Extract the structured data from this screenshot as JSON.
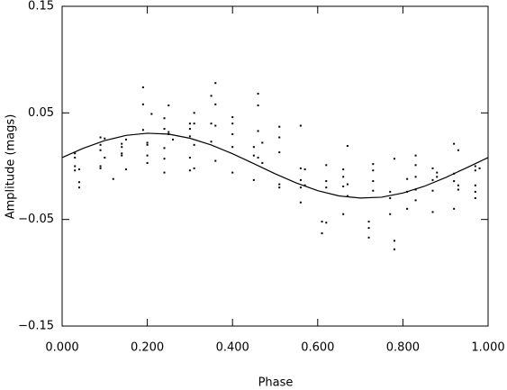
{
  "chart_data": {
    "type": "scatter",
    "xlabel": "Phase",
    "ylabel": "Amplitude (mags)",
    "xlim": [
      0,
      1
    ],
    "ylim": [
      -0.15,
      0.15
    ],
    "xticks": [
      {
        "value": 0,
        "label": "0.000"
      },
      {
        "value": 0.2,
        "label": "0.200"
      },
      {
        "value": 0.4,
        "label": "0.400"
      },
      {
        "value": 0.6,
        "label": "0.600"
      },
      {
        "value": 0.8,
        "label": "0.800"
      },
      {
        "value": 1,
        "label": "1.000"
      }
    ],
    "yticks": [
      {
        "value": -0.15,
        "label": "−0.15"
      },
      {
        "value": -0.05,
        "label": "−0.05"
      },
      0.05,
      0.15
    ],
    "series": [
      {
        "style": "points",
        "color": "#000000",
        "x": [
          0.03,
          0.03,
          0.03,
          0.03,
          0.04,
          0.04,
          0.04,
          0.09,
          0.09,
          0.09,
          0.09,
          0.09,
          0.1,
          0.1,
          0.12,
          0.14,
          0.14,
          0.14,
          0.14,
          0.15,
          0.15,
          0.19,
          0.19,
          0.19,
          0.2,
          0.2,
          0.2,
          0.2,
          0.21,
          0.24,
          0.24,
          0.24,
          0.24,
          0.24,
          0.25,
          0.25,
          0.25,
          0.26,
          0.3,
          0.3,
          0.3,
          0.3,
          0.3,
          0.31,
          0.31,
          0.31,
          0.31,
          0.35,
          0.35,
          0.35,
          0.36,
          0.36,
          0.36,
          0.36,
          0.4,
          0.4,
          0.4,
          0.4,
          0.4,
          0.45,
          0.45,
          0.45,
          0.46,
          0.46,
          0.46,
          0.46,
          0.47,
          0.47,
          0.51,
          0.51,
          0.51,
          0.51,
          0.51,
          0.56,
          0.56,
          0.56,
          0.56,
          0.56,
          0.57,
          0.57,
          0.61,
          0.61,
          0.62,
          0.62,
          0.62,
          0.62,
          0.66,
          0.66,
          0.66,
          0.66,
          0.67,
          0.67,
          0.67,
          0.72,
          0.72,
          0.72,
          0.73,
          0.73,
          0.73,
          0.73,
          0.77,
          0.77,
          0.77,
          0.78,
          0.78,
          0.78,
          0.81,
          0.81,
          0.81,
          0.83,
          0.83,
          0.83,
          0.83,
          0.83,
          0.87,
          0.87,
          0.87,
          0.87,
          0.88,
          0.88,
          0.92,
          0.92,
          0.92,
          0.92,
          0.93,
          0.93,
          0.93,
          0.97,
          0.97,
          0.97,
          0.97,
          0.97,
          0.98
        ],
        "values": [
          0.008,
          0.0,
          -0.004,
          0.012,
          -0.015,
          -0.02,
          -0.003,
          0.027,
          0.02,
          0.015,
          0.0,
          -0.002,
          0.026,
          0.008,
          -0.012,
          0.021,
          0.018,
          0.012,
          0.01,
          0.025,
          -0.003,
          0.074,
          0.058,
          0.034,
          0.022,
          0.02,
          0.01,
          0.003,
          0.049,
          0.045,
          0.035,
          0.017,
          0.007,
          -0.006,
          0.057,
          0.032,
          0.03,
          0.025,
          0.04,
          0.035,
          0.028,
          0.008,
          -0.004,
          0.05,
          0.04,
          0.02,
          -0.002,
          0.066,
          0.04,
          0.023,
          0.078,
          0.058,
          0.038,
          0.005,
          0.046,
          0.04,
          0.03,
          0.018,
          -0.006,
          0.018,
          0.01,
          -0.013,
          0.068,
          0.057,
          0.033,
          0.008,
          0.022,
          0.003,
          0.013,
          0.037,
          0.027,
          -0.017,
          -0.02,
          0.038,
          -0.002,
          -0.013,
          -0.02,
          -0.034,
          -0.018,
          -0.003,
          -0.063,
          -0.052,
          0.001,
          -0.014,
          -0.02,
          -0.053,
          -0.003,
          -0.01,
          -0.019,
          -0.045,
          0.019,
          -0.017,
          -0.028,
          -0.052,
          -0.058,
          -0.067,
          0.002,
          -0.004,
          -0.014,
          -0.023,
          -0.045,
          -0.024,
          -0.03,
          0.007,
          -0.07,
          -0.078,
          -0.04,
          -0.024,
          -0.012,
          0.01,
          0.001,
          -0.01,
          -0.022,
          -0.032,
          -0.002,
          -0.013,
          -0.023,
          -0.043,
          -0.006,
          -0.01,
          0.021,
          -0.007,
          -0.014,
          -0.04,
          0.015,
          -0.018,
          -0.022,
          0.0,
          -0.004,
          -0.018,
          -0.024,
          -0.03,
          -0.002
        ]
      },
      {
        "style": "line",
        "color": "#000000",
        "x": [
          0,
          0.05,
          0.1,
          0.15,
          0.2,
          0.25,
          0.3,
          0.35,
          0.4,
          0.45,
          0.5,
          0.55,
          0.6,
          0.65,
          0.7,
          0.75,
          0.8,
          0.85,
          0.9,
          0.95,
          1
        ],
        "values": [
          0.0081,
          0.0168,
          0.024,
          0.0289,
          0.0309,
          0.0301,
          0.0262,
          0.0199,
          0.0117,
          0.0024,
          -0.0071,
          -0.0158,
          -0.023,
          -0.0279,
          -0.0299,
          -0.0291,
          -0.0252,
          -0.0189,
          -0.0107,
          -0.0014,
          0.0081
        ]
      }
    ]
  }
}
